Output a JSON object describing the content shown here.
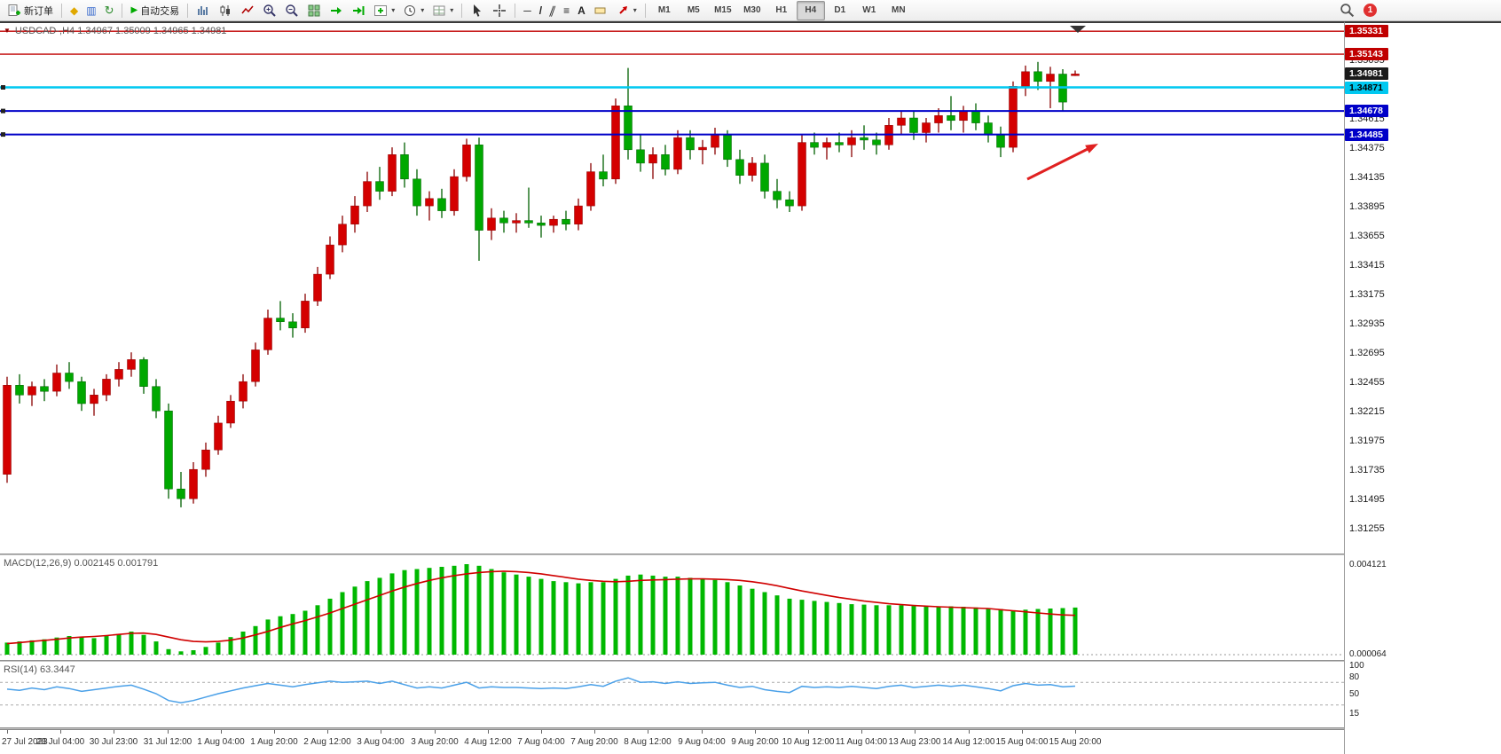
{
  "toolbar": {
    "new_order_label": "新订单",
    "auto_trading_label": "自动交易",
    "timeframes": [
      "M1",
      "M5",
      "M15",
      "M30",
      "H1",
      "H4",
      "D1",
      "W1",
      "MN"
    ],
    "active_timeframe": "H4",
    "notification_count": "1"
  },
  "icons": {
    "profile": "◆",
    "market_watch": "▥",
    "refresh": "↻",
    "play": "▶",
    "hline": "─",
    "trendline": "/",
    "channel": "∥",
    "fibonacci": "≡",
    "text_tool": "A",
    "caret": "▾",
    "collapse": "▼"
  },
  "chart": {
    "title": "USDCAD-,H4 1.34967 1.35009 1.34965 1.34981",
    "colors": {
      "bull": "#d40000",
      "bear": "#00a800",
      "bull_edge": "#8a0000",
      "bear_edge": "#006000",
      "arrow": "#e02020",
      "macd_hist": "#00b800",
      "macd_signal": "#d00000",
      "rsi_line": "#4aa0e8"
    }
  },
  "chart_data": {
    "type": "candlestick",
    "symbol": "USDCAD-",
    "timeframe": "H4",
    "ohlc_current": {
      "open": "1.34967",
      "high": "1.35009",
      "low": "1.34965",
      "close": "1.34981"
    },
    "y_range": [
      1.3108,
      1.3534
    ],
    "x_labels": [
      "27 Jul 2023",
      "28 Jul 04:00",
      "30 Jul 23:00",
      "31 Jul 12:00",
      "1 Aug 04:00",
      "1 Aug 20:00",
      "2 Aug 12:00",
      "3 Aug 04:00",
      "3 Aug 20:00",
      "4 Aug 12:00",
      "7 Aug 04:00",
      "7 Aug 20:00",
      "8 Aug 12:00",
      "9 Aug 04:00",
      "9 Aug 20:00",
      "10 Aug 12:00",
      "11 Aug 04:00",
      "13 Aug 23:00",
      "14 Aug 12:00",
      "15 Aug 04:00",
      "15 Aug 20:00"
    ],
    "y_axis_ticks": [
      "1.35095",
      "1.34615",
      "1.34375",
      "1.34135",
      "1.33895",
      "1.33655",
      "1.33415",
      "1.33175",
      "1.32935",
      "1.32695",
      "1.32455",
      "1.32215",
      "1.31975",
      "1.31735",
      "1.31495",
      "1.31255"
    ],
    "price_tags": [
      {
        "text": "1.35331",
        "price": 1.35331,
        "bg": "#c00000",
        "fg": "#ffffff",
        "line": "#c00000",
        "lw": 1.4,
        "handle": null
      },
      {
        "text": "1.35143",
        "price": 1.35143,
        "bg": "#c00000",
        "fg": "#ffffff",
        "line": "#c00000",
        "lw": 1.4,
        "handle": null
      },
      {
        "text": "1.34981",
        "price": 1.34981,
        "bg": "#1a1a1a",
        "fg": "#ffffff",
        "line": null,
        "lw": 0,
        "handle": null
      },
      {
        "text": "1.34871",
        "price": 1.34871,
        "bg": "#00c8f0",
        "fg": "#000000",
        "line": "#00c8f0",
        "lw": 2.4,
        "handle": "left"
      },
      {
        "text": "1.34678",
        "price": 1.34678,
        "bg": "#0000c8",
        "fg": "#ffffff",
        "line": "#0000c8",
        "lw": 2,
        "handle": "left"
      },
      {
        "text": "1.34485",
        "price": 1.34485,
        "bg": "#0000c8",
        "fg": "#ffffff",
        "line": "#0000c8",
        "lw": 2,
        "handle": "left"
      }
    ],
    "candles_ohlc": [
      [
        1.317,
        1.325,
        1.3163,
        1.3243
      ],
      [
        1.3243,
        1.3252,
        1.3228,
        1.3235
      ],
      [
        1.3235,
        1.3246,
        1.3226,
        1.3242
      ],
      [
        1.3242,
        1.3248,
        1.323,
        1.3238
      ],
      [
        1.3238,
        1.326,
        1.3234,
        1.3253
      ],
      [
        1.3253,
        1.3262,
        1.324,
        1.3246
      ],
      [
        1.3246,
        1.325,
        1.3222,
        1.3228
      ],
      [
        1.3228,
        1.324,
        1.3218,
        1.3235
      ],
      [
        1.3235,
        1.3252,
        1.323,
        1.3248
      ],
      [
        1.3248,
        1.3262,
        1.3242,
        1.3256
      ],
      [
        1.3256,
        1.327,
        1.325,
        1.3264
      ],
      [
        1.3264,
        1.3266,
        1.3236,
        1.3242
      ],
      [
        1.3242,
        1.3248,
        1.3216,
        1.3222
      ],
      [
        1.3222,
        1.3228,
        1.315,
        1.3158
      ],
      [
        1.3158,
        1.3172,
        1.3143,
        1.315
      ],
      [
        1.315,
        1.318,
        1.3146,
        1.3174
      ],
      [
        1.3174,
        1.3196,
        1.3168,
        1.319
      ],
      [
        1.319,
        1.3218,
        1.3186,
        1.3212
      ],
      [
        1.3212,
        1.3235,
        1.3208,
        1.323
      ],
      [
        1.323,
        1.3252,
        1.3224,
        1.3246
      ],
      [
        1.3246,
        1.3278,
        1.3242,
        1.3272
      ],
      [
        1.3272,
        1.3305,
        1.3268,
        1.3298
      ],
      [
        1.3298,
        1.3312,
        1.3288,
        1.3295
      ],
      [
        1.3295,
        1.3302,
        1.3282,
        1.329
      ],
      [
        1.329,
        1.3318,
        1.3286,
        1.3312
      ],
      [
        1.3312,
        1.334,
        1.3308,
        1.3334
      ],
      [
        1.3334,
        1.3365,
        1.333,
        1.3358
      ],
      [
        1.3358,
        1.3382,
        1.3352,
        1.3375
      ],
      [
        1.3375,
        1.3398,
        1.3368,
        1.339
      ],
      [
        1.339,
        1.3418,
        1.3385,
        1.341
      ],
      [
        1.341,
        1.3422,
        1.3395,
        1.3402
      ],
      [
        1.3402,
        1.3438,
        1.3398,
        1.3432
      ],
      [
        1.3432,
        1.3442,
        1.3405,
        1.3412
      ],
      [
        1.3412,
        1.342,
        1.3382,
        1.339
      ],
      [
        1.339,
        1.3402,
        1.3378,
        1.3396
      ],
      [
        1.3396,
        1.3404,
        1.338,
        1.3386
      ],
      [
        1.3386,
        1.342,
        1.3382,
        1.3414
      ],
      [
        1.3414,
        1.3445,
        1.341,
        1.344
      ],
      [
        1.344,
        1.3446,
        1.3345,
        1.337
      ],
      [
        1.337,
        1.3388,
        1.3362,
        1.338
      ],
      [
        1.338,
        1.3386,
        1.3368,
        1.3376
      ],
      [
        1.3376,
        1.3384,
        1.3368,
        1.3378
      ],
      [
        1.3378,
        1.3405,
        1.3372,
        1.3376
      ],
      [
        1.3376,
        1.3382,
        1.3364,
        1.3374
      ],
      [
        1.3374,
        1.3382,
        1.3368,
        1.3379
      ],
      [
        1.3379,
        1.3386,
        1.337,
        1.3375
      ],
      [
        1.3375,
        1.3396,
        1.337,
        1.339
      ],
      [
        1.339,
        1.3425,
        1.3386,
        1.3418
      ],
      [
        1.3418,
        1.3432,
        1.3406,
        1.3412
      ],
      [
        1.3412,
        1.3478,
        1.3408,
        1.3472
      ],
      [
        1.3472,
        1.3503,
        1.3428,
        1.3436
      ],
      [
        1.3436,
        1.3448,
        1.3418,
        1.3425
      ],
      [
        1.3425,
        1.3438,
        1.3412,
        1.3432
      ],
      [
        1.3432,
        1.344,
        1.3415,
        1.342
      ],
      [
        1.342,
        1.3452,
        1.3416,
        1.3446
      ],
      [
        1.3446,
        1.3452,
        1.3428,
        1.3436
      ],
      [
        1.3436,
        1.3444,
        1.3424,
        1.3438
      ],
      [
        1.3438,
        1.3454,
        1.3432,
        1.3448
      ],
      [
        1.3448,
        1.3452,
        1.3422,
        1.3428
      ],
      [
        1.3428,
        1.3436,
        1.3408,
        1.3415
      ],
      [
        1.3415,
        1.343,
        1.341,
        1.3425
      ],
      [
        1.3425,
        1.3432,
        1.3396,
        1.3402
      ],
      [
        1.3402,
        1.3412,
        1.3388,
        1.3395
      ],
      [
        1.3395,
        1.3402,
        1.3385,
        1.339
      ],
      [
        1.339,
        1.3448,
        1.3386,
        1.3442
      ],
      [
        1.3442,
        1.345,
        1.3432,
        1.3438
      ],
      [
        1.3438,
        1.3446,
        1.3428,
        1.3442
      ],
      [
        1.3442,
        1.345,
        1.3434,
        1.344
      ],
      [
        1.344,
        1.3452,
        1.343,
        1.3446
      ],
      [
        1.3446,
        1.3456,
        1.3436,
        1.3444
      ],
      [
        1.3444,
        1.345,
        1.3432,
        1.344
      ],
      [
        1.344,
        1.3462,
        1.3436,
        1.3456
      ],
      [
        1.3456,
        1.3468,
        1.3448,
        1.3462
      ],
      [
        1.3462,
        1.3468,
        1.3444,
        1.345
      ],
      [
        1.345,
        1.3462,
        1.3442,
        1.3458
      ],
      [
        1.3458,
        1.347,
        1.345,
        1.3464
      ],
      [
        1.3464,
        1.348,
        1.3452,
        1.346
      ],
      [
        1.346,
        1.3472,
        1.345,
        1.3468
      ],
      [
        1.3468,
        1.3474,
        1.3452,
        1.3458
      ],
      [
        1.3458,
        1.3464,
        1.3442,
        1.3448
      ],
      [
        1.3448,
        1.3455,
        1.343,
        1.3438
      ],
      [
        1.3438,
        1.3492,
        1.3434,
        1.3488
      ],
      [
        1.3488,
        1.3505,
        1.348,
        1.35
      ],
      [
        1.35,
        1.3508,
        1.3485,
        1.3492
      ],
      [
        1.3492,
        1.3504,
        1.347,
        1.3498
      ],
      [
        1.3498,
        1.3502,
        1.3468,
        1.3475
      ],
      [
        1.34967,
        1.35009,
        1.34965,
        1.34981
      ]
    ],
    "indicators": {
      "macd": {
        "label": "MACD(12,26,9) 0.002145 0.001791",
        "axis_max": "0.004121",
        "axis_min": "0.000064",
        "scale_max_x1e3": 4.121,
        "histogram_x1e3": [
          0.55,
          0.6,
          0.65,
          0.7,
          0.78,
          0.85,
          0.8,
          0.75,
          0.85,
          0.95,
          1.05,
          0.9,
          0.6,
          0.25,
          0.15,
          0.2,
          0.35,
          0.55,
          0.8,
          1.05,
          1.3,
          1.6,
          1.75,
          1.85,
          2.0,
          2.25,
          2.55,
          2.85,
          3.1,
          3.35,
          3.5,
          3.7,
          3.85,
          3.9,
          3.95,
          4.0,
          4.05,
          4.12,
          4.05,
          3.9,
          3.75,
          3.65,
          3.55,
          3.45,
          3.35,
          3.3,
          3.25,
          3.3,
          3.3,
          3.45,
          3.6,
          3.65,
          3.6,
          3.55,
          3.55,
          3.5,
          3.45,
          3.4,
          3.3,
          3.15,
          3.0,
          2.85,
          2.7,
          2.55,
          2.5,
          2.45,
          2.4,
          2.35,
          2.3,
          2.28,
          2.25,
          2.25,
          2.25,
          2.22,
          2.2,
          2.2,
          2.2,
          2.18,
          2.15,
          2.12,
          2.08,
          2.02,
          2.05,
          2.08,
          2.1,
          2.12,
          2.145
        ],
        "signal_x1e3": [
          0.5,
          0.55,
          0.6,
          0.65,
          0.7,
          0.76,
          0.8,
          0.83,
          0.87,
          0.92,
          0.97,
          0.98,
          0.92,
          0.8,
          0.68,
          0.6,
          0.58,
          0.6,
          0.66,
          0.76,
          0.9,
          1.06,
          1.24,
          1.4,
          1.55,
          1.72,
          1.9,
          2.1,
          2.3,
          2.5,
          2.7,
          2.9,
          3.08,
          3.24,
          3.38,
          3.5,
          3.6,
          3.68,
          3.74,
          3.78,
          3.8,
          3.78,
          3.74,
          3.68,
          3.6,
          3.52,
          3.44,
          3.38,
          3.34,
          3.32,
          3.34,
          3.38,
          3.4,
          3.42,
          3.44,
          3.45,
          3.45,
          3.44,
          3.42,
          3.38,
          3.32,
          3.24,
          3.14,
          3.02,
          2.9,
          2.8,
          2.7,
          2.6,
          2.52,
          2.44,
          2.38,
          2.32,
          2.28,
          2.24,
          2.21,
          2.18,
          2.16,
          2.14,
          2.12,
          2.1,
          2.05,
          2.0,
          1.95,
          1.9,
          1.85,
          1.81,
          1.791
        ]
      },
      "rsi": {
        "label": "RSI(14) 63.3447",
        "level_labels": [
          "100",
          "80",
          "50",
          "15"
        ],
        "dashed_levels": [
          70,
          30
        ],
        "values": [
          58,
          56,
          60,
          57,
          62,
          59,
          54,
          57,
          60,
          63,
          65,
          58,
          50,
          38,
          34,
          38,
          44,
          50,
          55,
          60,
          64,
          68,
          65,
          62,
          66,
          69,
          72,
          70,
          71,
          72,
          68,
          72,
          66,
          60,
          62,
          60,
          65,
          70,
          60,
          62,
          61,
          61,
          60,
          59,
          60,
          59,
          62,
          66,
          63,
          72,
          78,
          70,
          71,
          68,
          71,
          68,
          69,
          70,
          65,
          61,
          63,
          57,
          54,
          52,
          63,
          61,
          62,
          61,
          63,
          61,
          59,
          63,
          65,
          61,
          63,
          65,
          63,
          65,
          62,
          59,
          55,
          64,
          68,
          65,
          66,
          62,
          63.3
        ]
      }
    }
  }
}
